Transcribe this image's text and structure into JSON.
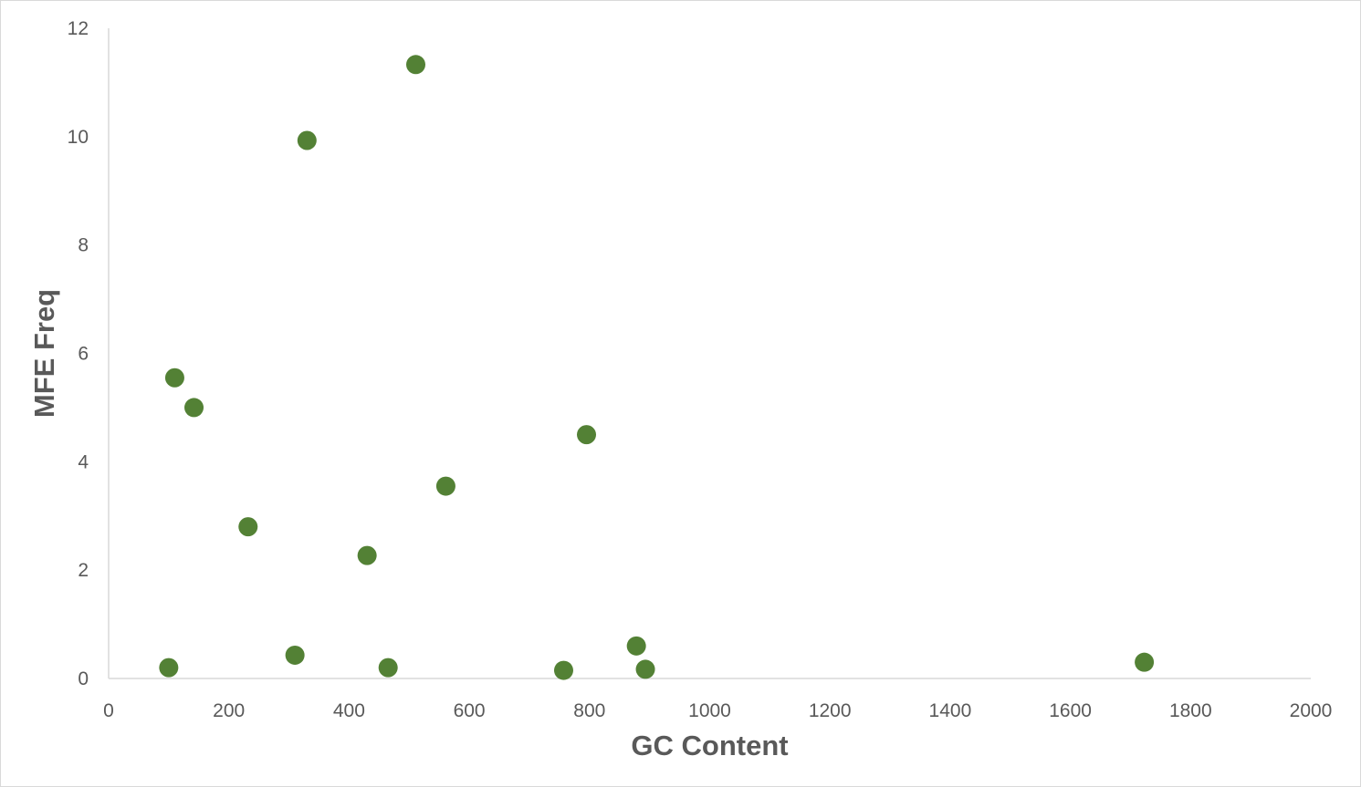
{
  "chart_data": {
    "type": "scatter",
    "title": "",
    "xlabel": "GC Content",
    "ylabel": "MFE Freq",
    "xlim": [
      0,
      2000
    ],
    "ylim": [
      0,
      12
    ],
    "x_ticks": [
      "0",
      "200",
      "400",
      "600",
      "800",
      "1000",
      "1200",
      "1400",
      "1600",
      "1800",
      "2000"
    ],
    "y_ticks": [
      "0",
      "2",
      "4",
      "6",
      "8",
      "10",
      "12"
    ],
    "grid": false,
    "legend": "none",
    "marker_color": "#538135",
    "series": [
      {
        "points": [
          {
            "x": 100,
            "y": 0.2
          },
          {
            "x": 110,
            "y": 5.55
          },
          {
            "x": 142,
            "y": 5.0
          },
          {
            "x": 232,
            "y": 2.8
          },
          {
            "x": 310,
            "y": 0.43
          },
          {
            "x": 330,
            "y": 9.93
          },
          {
            "x": 430,
            "y": 2.27
          },
          {
            "x": 465,
            "y": 0.2
          },
          {
            "x": 511,
            "y": 11.33
          },
          {
            "x": 561,
            "y": 3.55
          },
          {
            "x": 757,
            "y": 0.15
          },
          {
            "x": 795,
            "y": 4.5
          },
          {
            "x": 878,
            "y": 0.6
          },
          {
            "x": 893,
            "y": 0.17
          },
          {
            "x": 1723,
            "y": 0.3
          }
        ]
      }
    ]
  }
}
